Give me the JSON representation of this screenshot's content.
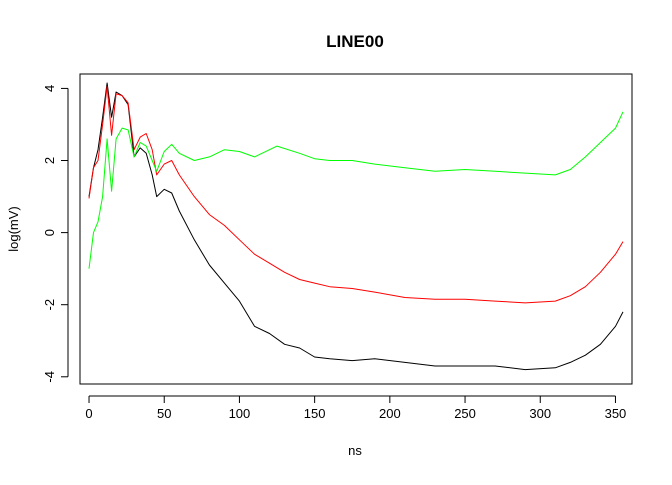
{
  "chart_data": {
    "type": "line",
    "title": "LINE00",
    "xlabel": "ns",
    "ylabel": "log(mV)",
    "xlim": [
      -6,
      361
    ],
    "ylim": [
      -4.2,
      4.4
    ],
    "xticks": [
      0,
      50,
      100,
      150,
      200,
      250,
      300,
      350
    ],
    "yticks": [
      -4,
      -2,
      0,
      2,
      4
    ],
    "grid": false,
    "legend": "none",
    "series": [
      {
        "color": "#000000",
        "x": [
          0,
          3,
          6,
          9,
          12,
          15,
          18,
          22,
          26,
          30,
          34,
          38,
          42,
          45,
          50,
          55,
          60,
          70,
          80,
          90,
          100,
          110,
          120,
          130,
          140,
          150,
          160,
          175,
          190,
          210,
          230,
          250,
          270,
          290,
          310,
          320,
          330,
          340,
          350,
          355
        ],
        "y": [
          1.0,
          1.8,
          2.3,
          3.2,
          4.15,
          3.2,
          3.9,
          3.8,
          3.55,
          2.1,
          2.35,
          2.2,
          1.6,
          1.0,
          1.2,
          1.1,
          0.6,
          -0.2,
          -0.9,
          -1.4,
          -1.9,
          -2.6,
          -2.8,
          -3.1,
          -3.2,
          -3.45,
          -3.5,
          -3.55,
          -3.5,
          -3.6,
          -3.7,
          -3.7,
          -3.7,
          -3.8,
          -3.75,
          -3.6,
          -3.4,
          -3.1,
          -2.6,
          -2.2
        ]
      },
      {
        "color": "#ff0000",
        "x": [
          0,
          3,
          6,
          9,
          12,
          15,
          18,
          22,
          26,
          30,
          34,
          38,
          42,
          45,
          50,
          55,
          60,
          70,
          80,
          90,
          100,
          110,
          120,
          130,
          140,
          150,
          160,
          175,
          190,
          210,
          230,
          250,
          270,
          290,
          310,
          320,
          330,
          340,
          350,
          355
        ],
        "y": [
          0.95,
          1.8,
          2.0,
          3.0,
          4.05,
          2.7,
          3.85,
          3.8,
          3.6,
          2.3,
          2.65,
          2.75,
          2.3,
          1.6,
          1.9,
          2.0,
          1.6,
          1.0,
          0.5,
          0.2,
          -0.2,
          -0.6,
          -0.85,
          -1.1,
          -1.3,
          -1.4,
          -1.5,
          -1.55,
          -1.65,
          -1.8,
          -1.85,
          -1.85,
          -1.9,
          -1.95,
          -1.9,
          -1.75,
          -1.5,
          -1.1,
          -0.6,
          -0.25
        ]
      },
      {
        "color": "#00ff00",
        "x": [
          0,
          3,
          6,
          9,
          12,
          15,
          18,
          22,
          26,
          30,
          34,
          38,
          42,
          45,
          50,
          55,
          60,
          70,
          80,
          90,
          100,
          110,
          125,
          140,
          150,
          160,
          175,
          190,
          210,
          230,
          250,
          270,
          290,
          310,
          320,
          330,
          340,
          350,
          355
        ],
        "y": [
          -1.0,
          0.0,
          0.3,
          1.0,
          2.6,
          1.15,
          2.6,
          2.9,
          2.85,
          2.1,
          2.5,
          2.4,
          2.0,
          1.7,
          2.25,
          2.45,
          2.2,
          2.0,
          2.1,
          2.3,
          2.25,
          2.1,
          2.4,
          2.2,
          2.05,
          2.0,
          2.0,
          1.9,
          1.8,
          1.7,
          1.75,
          1.7,
          1.65,
          1.6,
          1.75,
          2.1,
          2.5,
          2.9,
          3.35
        ]
      }
    ]
  }
}
